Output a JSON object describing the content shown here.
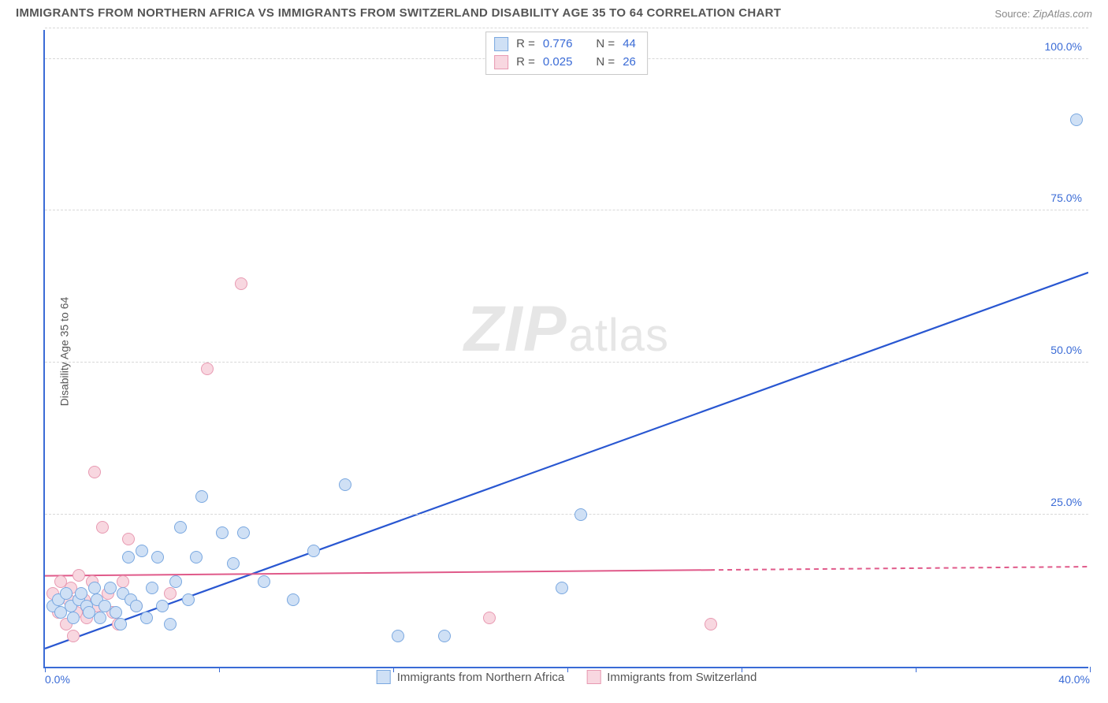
{
  "title": "IMMIGRANTS FROM NORTHERN AFRICA VS IMMIGRANTS FROM SWITZERLAND DISABILITY AGE 35 TO 64 CORRELATION CHART",
  "source_label": "Source:",
  "source_value": "ZipAtlas.com",
  "ylabel": "Disability Age 35 to 64",
  "watermark_zip": "ZIP",
  "watermark_rest": "atlas",
  "chart": {
    "type": "scatter",
    "xlim": [
      0,
      40
    ],
    "ylim": [
      0,
      105
    ],
    "xtick_positions": [
      0,
      6.67,
      13.33,
      20,
      26.67,
      33.33,
      40
    ],
    "xtick_labels_shown": {
      "0": "0.0%",
      "40": "40.0%"
    },
    "ytick_positions": [
      25,
      50,
      75,
      100
    ],
    "ytick_labels": [
      "25.0%",
      "50.0%",
      "75.0%",
      "100.0%"
    ],
    "yticks_top_gridline": 105,
    "grid_color": "#d8d8d8",
    "axis_color": "#3a6bd6",
    "background_color": "#ffffff",
    "marker_radius": 8,
    "marker_border_width": 1.5,
    "title_fontsize": 15,
    "title_color": "#555555",
    "label_fontsize": 14,
    "tick_color": "#3a6bd6",
    "series": [
      {
        "name": "Immigrants from Northern Africa",
        "fill": "#cfe0f5",
        "stroke": "#7aa8e0",
        "R": "0.776",
        "N": "44",
        "trend": {
          "x1": 0,
          "y1": 3,
          "x2": 40,
          "y2": 65,
          "color": "#2957d1",
          "width": 2.2,
          "dash_after_x": null
        },
        "points": [
          [
            0.3,
            10
          ],
          [
            0.5,
            11
          ],
          [
            0.6,
            9
          ],
          [
            0.8,
            12
          ],
          [
            1.0,
            10
          ],
          [
            1.1,
            8
          ],
          [
            1.3,
            11
          ],
          [
            1.4,
            12
          ],
          [
            1.6,
            10
          ],
          [
            1.7,
            9
          ],
          [
            1.9,
            13
          ],
          [
            2.0,
            11
          ],
          [
            2.1,
            8
          ],
          [
            2.3,
            10
          ],
          [
            2.5,
            13
          ],
          [
            2.7,
            9
          ],
          [
            2.9,
            7
          ],
          [
            3.0,
            12
          ],
          [
            3.2,
            18
          ],
          [
            3.3,
            11
          ],
          [
            3.5,
            10
          ],
          [
            3.7,
            19
          ],
          [
            3.9,
            8
          ],
          [
            4.1,
            13
          ],
          [
            4.3,
            18
          ],
          [
            4.5,
            10
          ],
          [
            4.8,
            7
          ],
          [
            5.0,
            14
          ],
          [
            5.2,
            23
          ],
          [
            5.5,
            11
          ],
          [
            5.8,
            18
          ],
          [
            6.0,
            28
          ],
          [
            6.8,
            22
          ],
          [
            7.2,
            17
          ],
          [
            7.6,
            22
          ],
          [
            8.4,
            14
          ],
          [
            9.5,
            11
          ],
          [
            10.3,
            19
          ],
          [
            11.5,
            30
          ],
          [
            13.5,
            5
          ],
          [
            15.3,
            5
          ],
          [
            19.8,
            13
          ],
          [
            20.5,
            25
          ],
          [
            39.5,
            90
          ]
        ]
      },
      {
        "name": "Immigrants from Switzerland",
        "fill": "#f8d7e0",
        "stroke": "#e89ab2",
        "R": "0.025",
        "N": "26",
        "trend": {
          "x1": 0,
          "y1": 15,
          "x2": 40,
          "y2": 16.5,
          "color": "#e05a8a",
          "width": 2,
          "dash_after_x": 25.5
        },
        "points": [
          [
            0.3,
            12
          ],
          [
            0.5,
            9
          ],
          [
            0.6,
            14
          ],
          [
            0.8,
            7
          ],
          [
            0.9,
            11
          ],
          [
            1.0,
            13
          ],
          [
            1.2,
            9
          ],
          [
            1.3,
            15
          ],
          [
            1.5,
            11
          ],
          [
            1.6,
            8
          ],
          [
            1.8,
            14
          ],
          [
            1.9,
            32
          ],
          [
            2.0,
            10
          ],
          [
            2.2,
            23
          ],
          [
            2.4,
            12
          ],
          [
            2.6,
            9
          ],
          [
            2.8,
            7
          ],
          [
            3.0,
            14
          ],
          [
            3.2,
            21
          ],
          [
            3.5,
            10
          ],
          [
            4.8,
            12
          ],
          [
            6.2,
            49
          ],
          [
            7.5,
            63
          ],
          [
            17.0,
            8
          ],
          [
            25.5,
            7
          ],
          [
            1.1,
            5
          ]
        ]
      }
    ]
  },
  "legend_top": {
    "r_label": "R  =",
    "n_label": "N  ="
  },
  "legend_bottom_labels": [
    "Immigrants from Northern Africa",
    "Immigrants from Switzerland"
  ]
}
